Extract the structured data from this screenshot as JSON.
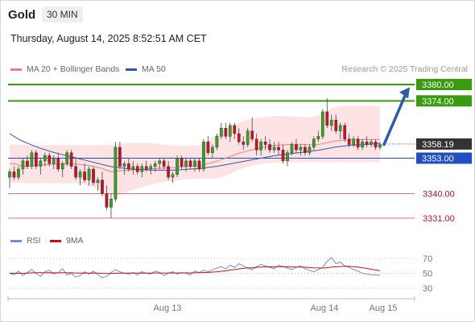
{
  "header": {
    "instrument": "Gold",
    "interval": "30 MIN",
    "datetime": "Thursday, August 14, 2025 8:52:51 AM CET",
    "credit": "Research © 2025 Trading Central"
  },
  "legend": {
    "ma20_label": "MA 20 + Bollinger Bands",
    "ma50_label": "MA 50",
    "rsi_label": "RSI",
    "ma9_label": "9MA"
  },
  "colors": {
    "bullish": "#39a022",
    "bearish": "#c8102e",
    "ma20": "#f08080",
    "ma50": "#2e5aa8",
    "bollinger_fill": "#fde3e3",
    "resistance": "#3a9a10",
    "support_red": "#e57373",
    "pivot_blue": "#1f4fc0",
    "arrow": "#2e5aa8",
    "rsi": "#6a8fd8",
    "rsi_ma": "#cc1111"
  },
  "chart_data": [
    {
      "type": "candlestick",
      "name": "price",
      "x_labels": [
        "Aug 13",
        "Aug 14",
        "Aug 15"
      ],
      "ylim": [
        3326,
        3386
      ],
      "levels": [
        {
          "value": 3380.0,
          "label": "3380.00",
          "kind": "resistance"
        },
        {
          "value": 3374.0,
          "label": "3374.00",
          "kind": "resistance"
        },
        {
          "value": 3358.19,
          "label": "3358.19",
          "kind": "current"
        },
        {
          "value": 3353.0,
          "label": "3353.00",
          "kind": "pivot"
        },
        {
          "value": 3340.0,
          "label": "3340.00",
          "kind": "support"
        },
        {
          "value": 3331.0,
          "label": "3331.00",
          "kind": "support"
        }
      ],
      "ohlc": [
        [
          3346,
          3349,
          3342,
          3348
        ],
        [
          3348,
          3350,
          3345,
          3346
        ],
        [
          3346,
          3350,
          3345,
          3349
        ],
        [
          3349,
          3353,
          3347,
          3352
        ],
        [
          3352,
          3354,
          3349,
          3350
        ],
        [
          3350,
          3356,
          3349,
          3355
        ],
        [
          3355,
          3356,
          3349,
          3350
        ],
        [
          3350,
          3353,
          3347,
          3352
        ],
        [
          3352,
          3355,
          3350,
          3354
        ],
        [
          3354,
          3355,
          3350,
          3351
        ],
        [
          3351,
          3354,
          3349,
          3353
        ],
        [
          3353,
          3355,
          3348,
          3349
        ],
        [
          3349,
          3352,
          3346,
          3351
        ],
        [
          3351,
          3356,
          3350,
          3355
        ],
        [
          3355,
          3356,
          3349,
          3350
        ],
        [
          3350,
          3353,
          3345,
          3346
        ],
        [
          3346,
          3349,
          3343,
          3348
        ],
        [
          3348,
          3351,
          3344,
          3345
        ],
        [
          3345,
          3350,
          3343,
          3349
        ],
        [
          3349,
          3350,
          3343,
          3344
        ],
        [
          3344,
          3346,
          3341,
          3345
        ],
        [
          3345,
          3348,
          3339,
          3340
        ],
        [
          3340,
          3343,
          3334,
          3335
        ],
        [
          3335,
          3340,
          3331,
          3338
        ],
        [
          3338,
          3359,
          3337,
          3357
        ],
        [
          3357,
          3359,
          3349,
          3350
        ],
        [
          3350,
          3352,
          3347,
          3351
        ],
        [
          3351,
          3353,
          3348,
          3349
        ],
        [
          3349,
          3352,
          3347,
          3350
        ],
        [
          3350,
          3351,
          3347,
          3348
        ],
        [
          3348,
          3351,
          3346,
          3350
        ],
        [
          3350,
          3352,
          3348,
          3349
        ],
        [
          3349,
          3351,
          3347,
          3350
        ],
        [
          3350,
          3352,
          3348,
          3351
        ],
        [
          3351,
          3353,
          3349,
          3352
        ],
        [
          3352,
          3353,
          3349,
          3350
        ],
        [
          3350,
          3352,
          3345,
          3346
        ],
        [
          3346,
          3348,
          3344,
          3347
        ],
        [
          3347,
          3354,
          3346,
          3353
        ],
        [
          3353,
          3354,
          3349,
          3350
        ],
        [
          3350,
          3353,
          3348,
          3352
        ],
        [
          3352,
          3353,
          3349,
          3350
        ],
        [
          3350,
          3353,
          3348,
          3352
        ],
        [
          3352,
          3353,
          3348,
          3349
        ],
        [
          3349,
          3360,
          3348,
          3359
        ],
        [
          3359,
          3361,
          3354,
          3355
        ],
        [
          3355,
          3358,
          3353,
          3357
        ],
        [
          3357,
          3362,
          3356,
          3361
        ],
        [
          3361,
          3366,
          3360,
          3364
        ],
        [
          3364,
          3366,
          3360,
          3361
        ],
        [
          3361,
          3366,
          3359,
          3365
        ],
        [
          3365,
          3366,
          3360,
          3362
        ],
        [
          3362,
          3364,
          3358,
          3359
        ],
        [
          3359,
          3361,
          3356,
          3358
        ],
        [
          3358,
          3364,
          3357,
          3363
        ],
        [
          3363,
          3368,
          3359,
          3360
        ],
        [
          3360,
          3362,
          3354,
          3356
        ],
        [
          3356,
          3360,
          3354,
          3359
        ],
        [
          3359,
          3361,
          3356,
          3358
        ],
        [
          3358,
          3360,
          3355,
          3356
        ],
        [
          3356,
          3359,
          3355,
          3357
        ],
        [
          3357,
          3359,
          3354,
          3356
        ],
        [
          3356,
          3358,
          3351,
          3352
        ],
        [
          3352,
          3356,
          3350,
          3355
        ],
        [
          3355,
          3359,
          3354,
          3358
        ],
        [
          3358,
          3360,
          3355,
          3356
        ],
        [
          3356,
          3358,
          3354,
          3357
        ],
        [
          3357,
          3358,
          3354,
          3355
        ],
        [
          3355,
          3358,
          3354,
          3357
        ],
        [
          3357,
          3361,
          3356,
          3360
        ],
        [
          3360,
          3363,
          3359,
          3361
        ],
        [
          3361,
          3371,
          3360,
          3370
        ],
        [
          3370,
          3375,
          3364,
          3365
        ],
        [
          3365,
          3369,
          3363,
          3367
        ],
        [
          3367,
          3369,
          3362,
          3363
        ],
        [
          3363,
          3366,
          3360,
          3365
        ],
        [
          3365,
          3366,
          3359,
          3360
        ],
        [
          3360,
          3362,
          3357,
          3358
        ],
        [
          3358,
          3361,
          3357,
          3360
        ],
        [
          3360,
          3361,
          3356,
          3357
        ],
        [
          3357,
          3360,
          3356,
          3359
        ],
        [
          3359,
          3361,
          3357,
          3358
        ],
        [
          3358,
          3360,
          3357,
          3359
        ],
        [
          3359,
          3360,
          3356,
          3357
        ],
        [
          3357,
          3359,
          3356,
          3358
        ]
      ],
      "ma20": [
        3351,
        3351,
        3350.5,
        3350,
        3350,
        3350.2,
        3350.4,
        3350.5,
        3350.6,
        3350.7,
        3350.8,
        3350.8,
        3350.8,
        3350.9,
        3350.9,
        3350.8,
        3350.7,
        3350.5,
        3350.3,
        3350,
        3349.6,
        3349.2,
        3348.6,
        3348,
        3348.2,
        3348.4,
        3348.5,
        3348.6,
        3348.7,
        3348.8,
        3348.9,
        3349,
        3349.1,
        3349.2,
        3349.3,
        3349.4,
        3349.4,
        3349.5,
        3349.7,
        3349.8,
        3349.9,
        3350,
        3350.1,
        3350.2,
        3350.6,
        3351,
        3351.4,
        3351.9,
        3352.5,
        3353,
        3353.6,
        3354.2,
        3354.8,
        3355.2,
        3355.7,
        3356.1,
        3356.4,
        3356.8,
        3357.1,
        3357.4,
        3357.6,
        3357.8,
        3357.9,
        3358,
        3358.1,
        3358.1,
        3358.1,
        3358,
        3357.9,
        3357.9,
        3358,
        3358.3,
        3358.7,
        3359,
        3359.3,
        3359.5,
        3359.6,
        3359.7,
        3359.8,
        3359.8,
        3359.8,
        3359.8,
        3359.8,
        3359.8,
        3359.8
      ],
      "ma50": [
        3362,
        3361,
        3360,
        3359.2,
        3358.5,
        3357.8,
        3357.2,
        3356.6,
        3356.1,
        3355.6,
        3355.1,
        3354.7,
        3354.3,
        3353.9,
        3353.5,
        3353.1,
        3352.7,
        3352.3,
        3351.9,
        3351.5,
        3351.1,
        3350.7,
        3350.3,
        3349.9,
        3349.7,
        3349.5,
        3349.3,
        3349.1,
        3349,
        3348.9,
        3348.8,
        3348.7,
        3348.6,
        3348.6,
        3348.6,
        3348.6,
        3348.6,
        3348.6,
        3348.7,
        3348.8,
        3348.9,
        3349,
        3349.1,
        3349.2,
        3349.4,
        3349.6,
        3349.8,
        3350,
        3350.3,
        3350.6,
        3350.9,
        3351.2,
        3351.5,
        3351.8,
        3352.1,
        3352.4,
        3352.7,
        3353,
        3353.3,
        3353.6,
        3353.9,
        3354.1,
        3354.3,
        3354.5,
        3354.7,
        3354.9,
        3355.1,
        3355.3,
        3355.5,
        3355.7,
        3355.9,
        3356.2,
        3356.5,
        3356.8,
        3357.1,
        3357.3,
        3357.5,
        3357.7,
        3357.8,
        3357.9,
        3358,
        3358.1,
        3358.2,
        3358.3,
        3358.4
      ],
      "bb_upper": [
        3358,
        3358,
        3358,
        3358,
        3357.8,
        3357.8,
        3357.8,
        3357.8,
        3357.8,
        3357.8,
        3357.8,
        3357.8,
        3357.8,
        3357.8,
        3357.8,
        3357.8,
        3357.8,
        3357.8,
        3357.8,
        3357.8,
        3357.8,
        3357.8,
        3357.8,
        3357.8,
        3358,
        3358.2,
        3358.4,
        3358.5,
        3358.6,
        3358.6,
        3358.6,
        3358.6,
        3358.6,
        3358.4,
        3358.2,
        3358,
        3357.8,
        3357.6,
        3357.6,
        3357.6,
        3357.6,
        3357.6,
        3357.6,
        3357.6,
        3358.5,
        3359.5,
        3360.5,
        3361.5,
        3362.5,
        3363.5,
        3364.5,
        3365.3,
        3366,
        3366.6,
        3367.1,
        3367.5,
        3367.8,
        3368,
        3368.2,
        3368.3,
        3368.4,
        3368.4,
        3368.4,
        3368.4,
        3368.3,
        3368.2,
        3368.1,
        3368,
        3368,
        3368.3,
        3368.7,
        3369.6,
        3370.5,
        3371.2,
        3371.7,
        3372,
        3372.2,
        3372.2,
        3372.2,
        3372.2,
        3372.2,
        3372.2,
        3372.2,
        3372.2,
        3372.2
      ],
      "bb_lower": [
        3344,
        3344,
        3344,
        3343.8,
        3343.8,
        3343.8,
        3343.8,
        3343.8,
        3343.8,
        3343.8,
        3343.8,
        3343.8,
        3343.8,
        3343.8,
        3343.8,
        3343.8,
        3343.5,
        3343.2,
        3342.8,
        3342.3,
        3341.7,
        3341,
        3340.3,
        3339.5,
        3339.5,
        3339.7,
        3340.2,
        3340.8,
        3341.4,
        3341.9,
        3342.4,
        3342.8,
        3343.2,
        3343.6,
        3343.9,
        3344.2,
        3344.4,
        3344.6,
        3344.8,
        3345,
        3345.2,
        3345.3,
        3345.4,
        3345.5,
        3345.5,
        3345.5,
        3345.5,
        3345.6,
        3346,
        3346.6,
        3347.3,
        3348,
        3348.7,
        3349.3,
        3349.8,
        3350.2,
        3350.6,
        3350.9,
        3351.1,
        3351.3,
        3351.4,
        3351.5,
        3351.5,
        3351.5,
        3351.5,
        3351.5,
        3351.5,
        3351.5,
        3351.5,
        3351.5,
        3351.5,
        3351.5,
        3351.5,
        3351.5,
        3351.5,
        3351.5,
        3351.5,
        3351.5,
        3351.5,
        3351.5,
        3351.5,
        3351.5,
        3351.5,
        3351.5,
        3351.5
      ],
      "projection": {
        "from": 3358,
        "to": 3379
      }
    },
    {
      "type": "line",
      "name": "rsi",
      "yticks": [
        70,
        50,
        30
      ],
      "ylim": [
        20,
        80
      ],
      "rsi": [
        50,
        48,
        53,
        47,
        51,
        55,
        50,
        46,
        52,
        54,
        49,
        51,
        56,
        48,
        50,
        45,
        47,
        52,
        49,
        53,
        48,
        44,
        46,
        51,
        55,
        52,
        50,
        49,
        51,
        48,
        52,
        50,
        49,
        53,
        51,
        47,
        50,
        52,
        49,
        51,
        50,
        48,
        53,
        51,
        54,
        52,
        55,
        57,
        59,
        56,
        61,
        58,
        63,
        60,
        57,
        55,
        59,
        62,
        60,
        58,
        56,
        61,
        59,
        57,
        55,
        58,
        60,
        56,
        54,
        52,
        55,
        58,
        66,
        71,
        63,
        65,
        60,
        58,
        55,
        53,
        50,
        49,
        48,
        48,
        47
      ],
      "rsi_ma": [
        50,
        50,
        50,
        50,
        50.3,
        50.6,
        50.8,
        50.8,
        50.7,
        50.8,
        50.7,
        50.7,
        50.9,
        50.8,
        50.7,
        50.4,
        50.3,
        50.4,
        50.2,
        50.4,
        50.2,
        49.9,
        49.7,
        49.8,
        50,
        50.1,
        50.2,
        50.2,
        50.3,
        50.2,
        50.3,
        50.3,
        50.2,
        50.4,
        50.4,
        50.3,
        50.4,
        50.4,
        50.4,
        50.5,
        50.5,
        50.5,
        50.7,
        50.8,
        51,
        51.2,
        51.6,
        52.1,
        52.8,
        53.4,
        54.3,
        55,
        55.9,
        56.6,
        57.1,
        57.5,
        58,
        58.4,
        58.6,
        58.7,
        58.6,
        58.8,
        58.9,
        58.7,
        58.5,
        58.4,
        58.3,
        58.1,
        57.8,
        57.4,
        57.1,
        57,
        57.5,
        58.3,
        58.7,
        59.1,
        59.4,
        59.3,
        59,
        58.4,
        57.5,
        56.5,
        55.4,
        54.4,
        53.4
      ]
    }
  ]
}
